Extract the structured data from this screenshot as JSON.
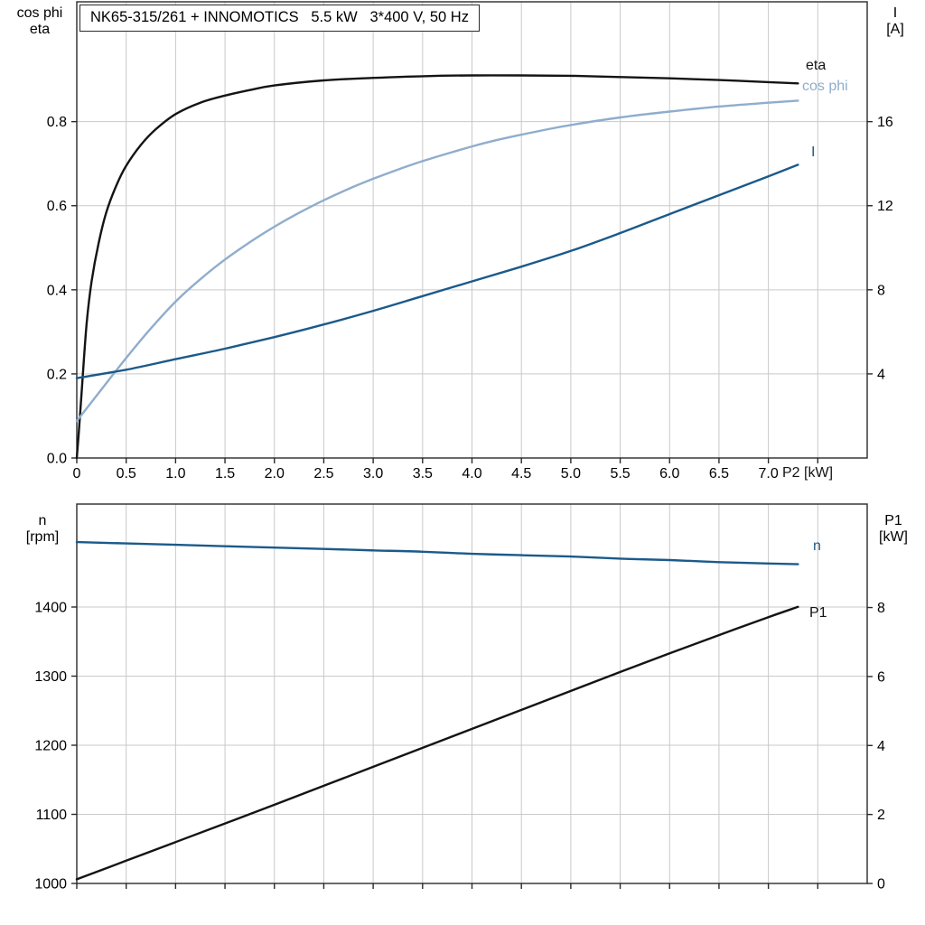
{
  "title": "NK65-315/261 + INNOMOTICS   5.5 kW   3*400 V, 50 Hz",
  "colors": {
    "black_curve": "#141414",
    "light_blue_curve": "#8fadcd",
    "dark_blue_curve": "#1b5a8a",
    "grid": "#c9c9c9",
    "frame": "#2a2a2a",
    "text": "#000000"
  },
  "top_chart": {
    "left_axis_title": [
      "cos phi",
      "eta"
    ],
    "right_axis_title": [
      "I",
      "[A]"
    ],
    "labels": {
      "eta": "eta",
      "cos_phi": "cos phi",
      "current": "I"
    }
  },
  "bottom_chart": {
    "left_axis_title": [
      "n",
      "[rpm]"
    ],
    "right_axis_title": [
      "P1",
      "[kW]"
    ],
    "labels": {
      "n": "n",
      "p1": "P1"
    }
  },
  "chart_data": [
    {
      "type": "line",
      "title": "NK65-315/261 + INNOMOTICS 5.5 kW 3*400 V, 50 Hz",
      "xlabel": "P2 [kW]",
      "ylabel_left": "cos phi / eta",
      "ylabel_right": "I [A]",
      "xlim": [
        0,
        8
      ],
      "xticks": [
        0,
        0.5,
        1,
        1.5,
        2,
        2.5,
        3,
        3.5,
        4,
        4.5,
        5,
        5.5,
        6,
        6.5,
        7,
        7.5
      ],
      "xtick_labels": [
        "0",
        "0.5",
        "1.0",
        "1.5",
        "2.0",
        "2.5",
        "3.0",
        "3.5",
        "4.0",
        "4.5",
        "5.0",
        "5.5",
        "6.0",
        "6.5",
        "7.0",
        ""
      ],
      "ylim_left": [
        0,
        1.085
      ],
      "yticks_left": [
        0,
        0.2,
        0.4,
        0.6,
        0.8
      ],
      "ytick_labels_left": [
        "0.0",
        "0.2",
        "0.4",
        "0.6",
        "0.8"
      ],
      "ylim_right": [
        0,
        21.7
      ],
      "yticks_right": [
        4,
        8,
        12,
        16
      ],
      "ytick_labels_right": [
        "4",
        "8",
        "12",
        "16"
      ],
      "grid": true,
      "legend_position": "right-inline",
      "series": [
        {
          "name": "eta",
          "axis": "left",
          "color": "#141414",
          "x": [
            0,
            0.02,
            0.05,
            0.1,
            0.15,
            0.22,
            0.3,
            0.4,
            0.5,
            0.65,
            0.8,
            1.0,
            1.25,
            1.5,
            1.75,
            2.0,
            2.5,
            3.0,
            3.5,
            4.0,
            4.5,
            5.0,
            5.5,
            6.0,
            6.5,
            7.0,
            7.3
          ],
          "y": [
            0,
            0.06,
            0.16,
            0.32,
            0.42,
            0.51,
            0.585,
            0.648,
            0.695,
            0.745,
            0.782,
            0.818,
            0.845,
            0.862,
            0.875,
            0.886,
            0.898,
            0.904,
            0.908,
            0.91,
            0.91,
            0.909,
            0.906,
            0.903,
            0.899,
            0.894,
            0.891
          ]
        },
        {
          "name": "cos phi",
          "axis": "left",
          "color": "#8fadcd",
          "x": [
            0,
            0.1,
            0.25,
            0.5,
            0.75,
            1.0,
            1.25,
            1.5,
            1.75,
            2.0,
            2.25,
            2.5,
            2.75,
            3.0,
            3.25,
            3.5,
            3.75,
            4.0,
            4.25,
            4.5,
            4.75,
            5.0,
            5.5,
            6.0,
            6.5,
            7.0,
            7.3
          ],
          "y": [
            0.088,
            0.118,
            0.163,
            0.238,
            0.308,
            0.372,
            0.425,
            0.472,
            0.513,
            0.55,
            0.583,
            0.613,
            0.64,
            0.664,
            0.686,
            0.706,
            0.724,
            0.741,
            0.756,
            0.769,
            0.781,
            0.792,
            0.81,
            0.824,
            0.836,
            0.845,
            0.85
          ]
        },
        {
          "name": "I",
          "axis": "right",
          "color": "#1b5a8a",
          "x": [
            0,
            0.5,
            1.0,
            1.5,
            2.0,
            2.5,
            3.0,
            3.5,
            4.0,
            4.5,
            5.0,
            5.5,
            6.0,
            6.5,
            7.0,
            7.3
          ],
          "y": [
            3.8,
            4.2,
            4.7,
            5.2,
            5.75,
            6.35,
            7.0,
            7.7,
            8.4,
            9.1,
            9.85,
            10.7,
            11.6,
            12.5,
            13.4,
            13.95
          ]
        }
      ]
    },
    {
      "type": "line",
      "title": "",
      "xlabel": "",
      "ylabel_left": "n [rpm]",
      "ylabel_right": "P1 [kW]",
      "xlim": [
        0,
        8
      ],
      "xticks": [
        0,
        0.5,
        1,
        1.5,
        2,
        2.5,
        3,
        3.5,
        4,
        4.5,
        5,
        5.5,
        6,
        6.5,
        7,
        7.5
      ],
      "xtick_labels": [
        "",
        "",
        "",
        "",
        "",
        "",
        "",
        "",
        "",
        "",
        "",
        "",
        "",
        "",
        "",
        ""
      ],
      "ylim_left": [
        1000,
        1549
      ],
      "yticks_left": [
        1000,
        1100,
        1200,
        1300,
        1400
      ],
      "ytick_labels_left": [
        "1000",
        "1100",
        "1200",
        "1300",
        "1400"
      ],
      "ylim_right": [
        0,
        11
      ],
      "yticks_right": [
        0,
        2,
        4,
        6,
        8
      ],
      "ytick_labels_right": [
        "0",
        "2",
        "4",
        "6",
        "8"
      ],
      "grid": true,
      "legend_position": "right-inline",
      "series": [
        {
          "name": "n",
          "axis": "left",
          "color": "#1b5a8a",
          "x": [
            0,
            0.5,
            1,
            1.5,
            2,
            2.5,
            3,
            3.5,
            4,
            4.5,
            5,
            5.5,
            6,
            6.5,
            7,
            7.3
          ],
          "y": [
            1494,
            1492,
            1490,
            1488,
            1486,
            1484,
            1482,
            1480,
            1477,
            1475,
            1473,
            1470,
            1468,
            1465,
            1463,
            1462
          ]
        },
        {
          "name": "P1",
          "axis": "right",
          "color": "#141414",
          "x": [
            0,
            0.5,
            1,
            1.5,
            2,
            2.5,
            3,
            3.5,
            4,
            4.5,
            5,
            5.5,
            6,
            6.5,
            7,
            7.3
          ],
          "y": [
            0.12,
            0.66,
            1.2,
            1.74,
            2.28,
            2.83,
            3.38,
            3.93,
            4.48,
            5.03,
            5.58,
            6.13,
            6.67,
            7.2,
            7.72,
            8.02
          ]
        }
      ]
    }
  ]
}
